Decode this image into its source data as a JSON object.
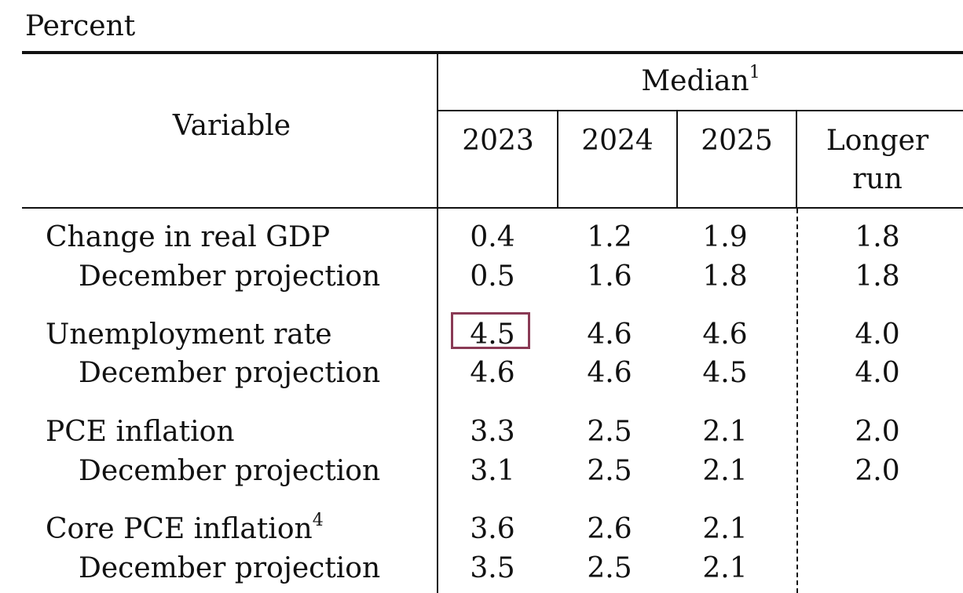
{
  "unit_label": "Percent",
  "header": {
    "variable_label": "Variable",
    "median_label": "Median",
    "median_footnote": "1",
    "years": [
      "2023",
      "2024",
      "2025"
    ],
    "longer_run_line1": "Longer",
    "longer_run_line2": "run"
  },
  "rows": [
    {
      "label": "Change in real GDP",
      "footnote": "",
      "values": [
        "0.4",
        "1.2",
        "1.9",
        "1.8"
      ]
    },
    {
      "label": "December projection",
      "footnote": "",
      "values": [
        "0.5",
        "1.6",
        "1.8",
        "1.8"
      ]
    },
    {
      "label": "Unemployment rate",
      "footnote": "",
      "values": [
        "4.5",
        "4.6",
        "4.6",
        "4.0"
      ]
    },
    {
      "label": "December projection",
      "footnote": "",
      "values": [
        "4.6",
        "4.6",
        "4.5",
        "4.0"
      ]
    },
    {
      "label": "PCE inflation",
      "footnote": "",
      "values": [
        "3.3",
        "2.5",
        "2.1",
        "2.0"
      ]
    },
    {
      "label": "December projection",
      "footnote": "",
      "values": [
        "3.1",
        "2.5",
        "2.1",
        "2.0"
      ]
    },
    {
      "label": "Core PCE inflation",
      "footnote": "4",
      "values": [
        "3.6",
        "2.6",
        "2.1",
        ""
      ]
    },
    {
      "label": "December projection",
      "footnote": "",
      "values": [
        "3.5",
        "2.5",
        "2.1",
        ""
      ]
    }
  ],
  "highlight_color": "#8a3a55"
}
